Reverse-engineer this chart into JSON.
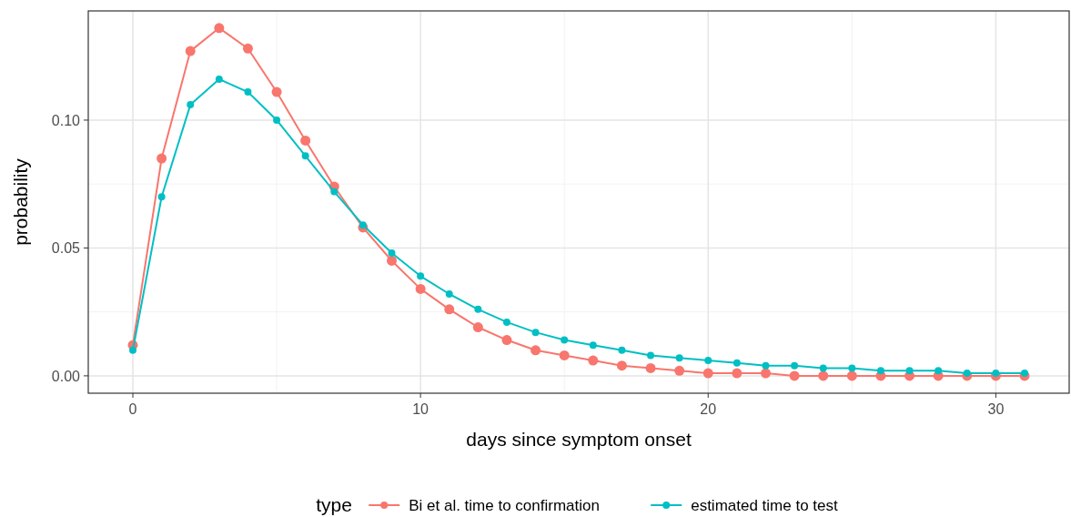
{
  "chart_data": {
    "type": "line",
    "xlabel": "days since symptom onset",
    "ylabel": "probability",
    "legend_title": "type",
    "x": [
      0,
      1,
      2,
      3,
      4,
      5,
      6,
      7,
      8,
      9,
      10,
      11,
      12,
      13,
      14,
      15,
      16,
      17,
      18,
      19,
      20,
      21,
      22,
      23,
      24,
      25,
      26,
      27,
      28,
      29,
      30,
      31
    ],
    "series": [
      {
        "name": "Bi et al. time to confirmation",
        "color": "#f8766d",
        "values": [
          0.012,
          0.085,
          0.127,
          0.136,
          0.128,
          0.111,
          0.092,
          0.074,
          0.058,
          0.045,
          0.034,
          0.026,
          0.019,
          0.014,
          0.01,
          0.008,
          0.006,
          0.004,
          0.003,
          0.002,
          0.001,
          0.001,
          0.001,
          0.0,
          0.0,
          0.0,
          0.0,
          0.0,
          0.0,
          0.0,
          0.0,
          0.0
        ]
      },
      {
        "name": "estimated time to test",
        "color": "#00bfc4",
        "values": [
          0.01,
          0.07,
          0.106,
          0.116,
          0.111,
          0.1,
          0.086,
          0.072,
          0.059,
          0.048,
          0.039,
          0.032,
          0.026,
          0.021,
          0.017,
          0.014,
          0.012,
          0.01,
          0.008,
          0.007,
          0.006,
          0.005,
          0.004,
          0.004,
          0.003,
          0.003,
          0.002,
          0.002,
          0.002,
          0.001,
          0.001,
          0.001
        ]
      }
    ],
    "xlim": [
      -1.55,
      32.55
    ],
    "ylim": [
      -0.0068,
      0.1427
    ],
    "xticks": [
      0,
      10,
      20,
      30
    ],
    "yticks": [
      {
        "value": 0,
        "label": "0.00"
      },
      {
        "value": 0.05,
        "label": "0.05"
      },
      {
        "value": 0.1,
        "label": "0.10"
      }
    ],
    "grid": true,
    "legend": "bottom",
    "marker": "circle",
    "line_style": "solid"
  }
}
